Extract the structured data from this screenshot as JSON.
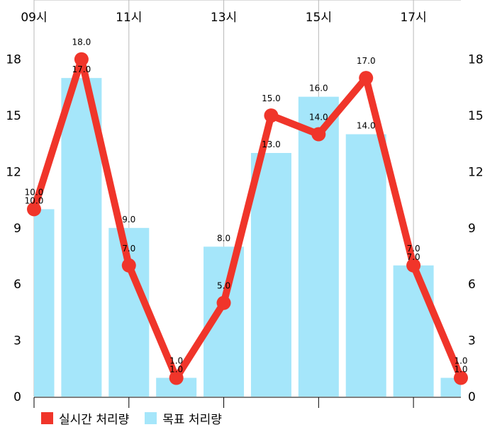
{
  "chart_data": {
    "type": "bar",
    "x_tick_labels": [
      "09시",
      "11시",
      "13시",
      "15시",
      "17시"
    ],
    "categories": [
      "09시",
      "10시",
      "11시",
      "12시",
      "13시",
      "14시",
      "15시",
      "16시",
      "17시",
      "18시"
    ],
    "ylim": [
      0,
      19.5
    ],
    "yticks": [
      0,
      3,
      6,
      9,
      12,
      15,
      18
    ],
    "grid": true,
    "legend_position": "bottom-left",
    "series": [
      {
        "name": "실시간 처리량",
        "type": "line",
        "color": "#f0352a",
        "values": [
          10,
          18,
          7,
          1,
          5,
          15,
          14,
          17,
          7,
          1
        ]
      },
      {
        "name": "목표 처리량",
        "type": "bar",
        "color": "#a5e6fa",
        "values": [
          10,
          17,
          9,
          1,
          8,
          13,
          16,
          14,
          7,
          1
        ]
      }
    ]
  }
}
